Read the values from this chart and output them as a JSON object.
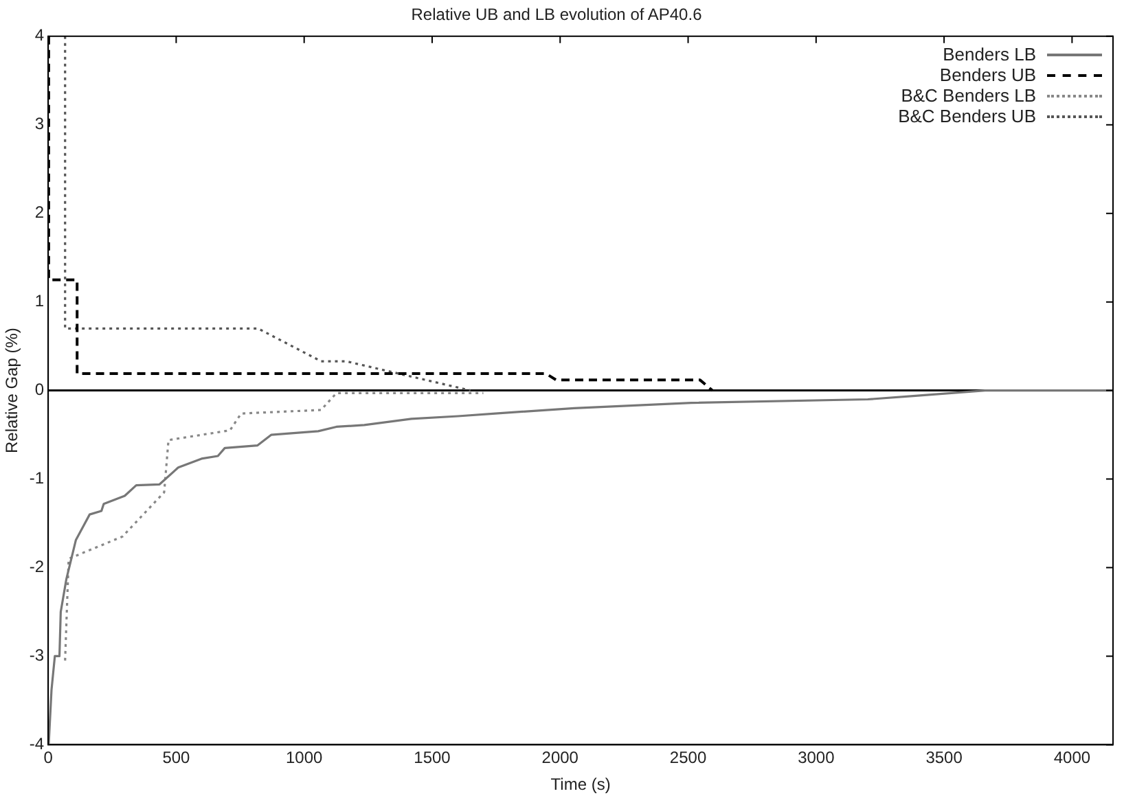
{
  "chart_data": {
    "type": "line",
    "title": "Relative UB and LB evolution of AP40.6",
    "xlabel": "Time (s)",
    "ylabel": "Relative Gap (%)",
    "xlim": [
      0,
      4160
    ],
    "xticks": [
      0,
      500,
      1000,
      1500,
      2000,
      2500,
      3000,
      3500,
      4000
    ],
    "ylim": [
      -4,
      4
    ],
    "yticks": [
      -4,
      -3,
      -2,
      -1,
      0,
      1,
      2,
      3,
      4
    ],
    "grid": false,
    "legend": "top right",
    "marker": "none",
    "ref_lines": [
      {
        "axis": "y",
        "value": 0,
        "color": "#000000",
        "line_style": "solid"
      }
    ],
    "series": [
      {
        "name": "Benders LB",
        "color": "#777777",
        "line_style": "solid",
        "x": [
          2,
          13,
          26,
          44,
          49,
          71,
          108,
          162,
          208,
          217,
          299,
          344,
          435,
          508,
          599,
          663,
          690,
          818,
          872,
          1055,
          1126,
          1235,
          1419,
          1601,
          1747,
          2055,
          2512,
          3202,
          3388,
          3660,
          4160
        ],
        "values": [
          -4,
          -3.38,
          -3.0,
          -3.0,
          -2.5,
          -2.13,
          -1.69,
          -1.4,
          -1.36,
          -1.28,
          -1.19,
          -1.07,
          -1.06,
          -0.87,
          -0.77,
          -0.74,
          -0.65,
          -0.62,
          -0.5,
          -0.46,
          -0.41,
          -0.39,
          -0.32,
          -0.29,
          -0.26,
          -0.2,
          -0.14,
          -0.1,
          -0.06,
          0,
          0
        ]
      },
      {
        "name": "Benders UB",
        "color": "#000000",
        "line_style": "dashed",
        "x": [
          2,
          2,
          113,
          113,
          1945,
          1984,
          2546,
          2595
        ],
        "values": [
          4,
          1.25,
          1.25,
          0.19,
          0.19,
          0.12,
          0.12,
          0
        ]
      },
      {
        "name": "B&C Benders LB",
        "color": "#888888",
        "line_style": "dotted",
        "x": [
          66,
          80,
          290,
          453,
          470,
          710,
          754,
          1066,
          1126,
          1700
        ],
        "values": [
          -3.05,
          -1.9,
          -1.65,
          -1.15,
          -0.56,
          -0.45,
          -0.26,
          -0.22,
          -0.03,
          -0.03
        ]
      },
      {
        "name": "B&C Benders UB",
        "color": "#555555",
        "line_style": "dotted",
        "x": [
          66,
          66,
          820,
          1066,
          1164,
          1650
        ],
        "values": [
          4,
          0.7,
          0.7,
          0.33,
          0.33,
          0
        ]
      }
    ]
  }
}
